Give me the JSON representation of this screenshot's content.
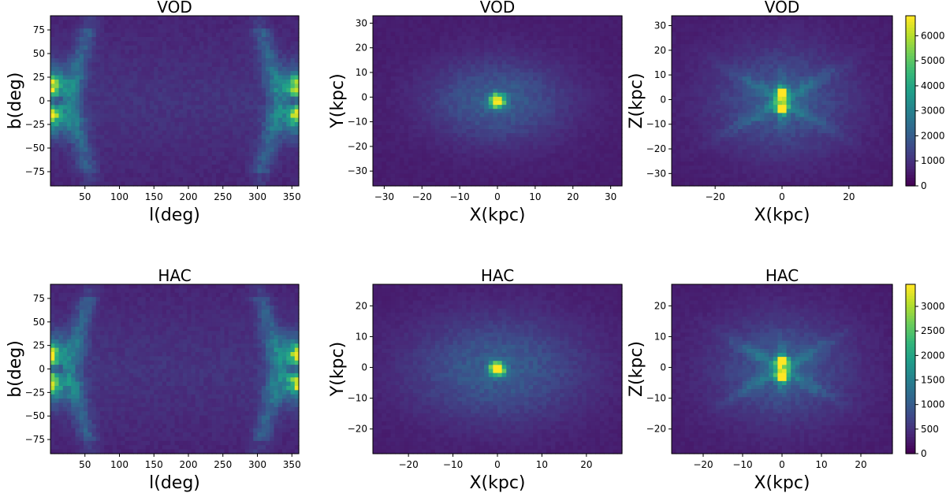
{
  "chart_data": [
    {
      "type": "heatmap",
      "id": "vod-lb",
      "title": "VOD",
      "xlabel": "l(deg)",
      "ylabel": "b(deg)",
      "xlim": [
        0,
        360
      ],
      "ylim": [
        -90,
        90
      ],
      "xticks": [
        50,
        100,
        150,
        200,
        250,
        300,
        350
      ],
      "yticks": [
        -75,
        -50,
        -25,
        0,
        25,
        50,
        75
      ],
      "colormap": "viridis",
      "vmax": 6500,
      "pattern": "sky"
    },
    {
      "type": "heatmap",
      "id": "vod-xy",
      "title": "VOD",
      "xlabel": "X(kpc)",
      "ylabel": "Y(kpc)",
      "xlim": [
        -33,
        33
      ],
      "ylim": [
        -36,
        33
      ],
      "xticks": [
        -30,
        -20,
        -10,
        0,
        10,
        20,
        30
      ],
      "yticks": [
        -30,
        -20,
        -10,
        0,
        10,
        20,
        30
      ],
      "colormap": "viridis",
      "vmax": 6500,
      "pattern": "blob"
    },
    {
      "type": "heatmap",
      "id": "vod-xz",
      "title": "VOD",
      "xlabel": "X(kpc)",
      "ylabel": "Z(kpc)",
      "xlim": [
        -33,
        33
      ],
      "ylim": [
        -35,
        34
      ],
      "xticks": [
        -20,
        0,
        20
      ],
      "yticks": [
        -30,
        -20,
        -10,
        0,
        10,
        20,
        30
      ],
      "colormap": "viridis",
      "vmax": 6500,
      "pattern": "xshape",
      "colorbar": {
        "min": 0,
        "max": 6800,
        "ticks": [
          0,
          1000,
          2000,
          3000,
          4000,
          5000,
          6000
        ]
      }
    },
    {
      "type": "heatmap",
      "id": "hac-lb",
      "title": "HAC",
      "xlabel": "l(deg)",
      "ylabel": "b(deg)",
      "xlim": [
        0,
        360
      ],
      "ylim": [
        -90,
        90
      ],
      "xticks": [
        50,
        100,
        150,
        200,
        250,
        300,
        350
      ],
      "yticks": [
        -75,
        -50,
        -25,
        0,
        25,
        50,
        75
      ],
      "colormap": "viridis",
      "vmax": 3400,
      "pattern": "sky"
    },
    {
      "type": "heatmap",
      "id": "hac-xy",
      "title": "HAC",
      "xlabel": "X(kpc)",
      "ylabel": "Y(kpc)",
      "xlim": [
        -28,
        28
      ],
      "ylim": [
        -28,
        27
      ],
      "xticks": [
        -20,
        -10,
        0,
        10,
        20
      ],
      "yticks": [
        -20,
        -10,
        0,
        10,
        20
      ],
      "colormap": "viridis",
      "vmax": 3400,
      "pattern": "blob"
    },
    {
      "type": "heatmap",
      "id": "hac-xz",
      "title": "HAC",
      "xlabel": "X(kpc)",
      "ylabel": "Z(kpc)",
      "xlim": [
        -28,
        28
      ],
      "ylim": [
        -28,
        27
      ],
      "xticks": [
        -20,
        -10,
        0,
        10,
        20
      ],
      "yticks": [
        -20,
        -10,
        0,
        10,
        20
      ],
      "colormap": "viridis",
      "vmax": 3400,
      "pattern": "xshape",
      "colorbar": {
        "min": 0,
        "max": 3450,
        "ticks": [
          0,
          500,
          1000,
          1500,
          2000,
          2500,
          3000
        ]
      }
    }
  ]
}
